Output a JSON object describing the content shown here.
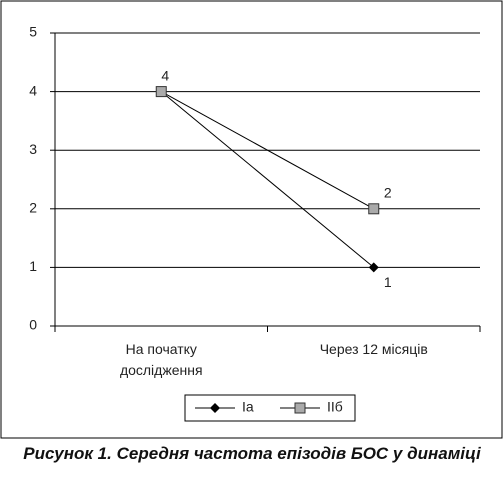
{
  "chart_data": {
    "type": "line",
    "title": "Рисунок 1. Середня частота епізодів БОС у динаміці",
    "categories": [
      "На початку дослідження",
      "Через 12 місяців"
    ],
    "series": [
      {
        "name": "Ia",
        "color": "#000000",
        "marker": "diamond",
        "values": [
          4,
          1
        ]
      },
      {
        "name": "IIб",
        "color": "#808080",
        "marker": "square",
        "values": [
          4,
          2
        ]
      }
    ],
    "ylim": [
      0,
      5
    ],
    "yticks": [
      0,
      1,
      2,
      3,
      4,
      5
    ],
    "grid": true,
    "legend": "bottom"
  }
}
